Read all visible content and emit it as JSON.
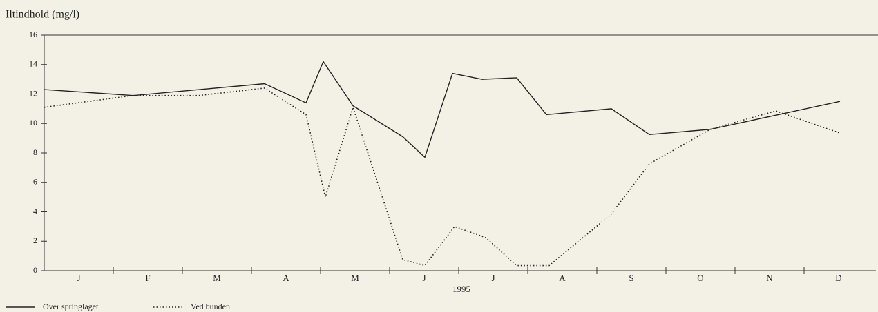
{
  "chart_data": {
    "type": "line",
    "title": "Iltindhold (mg/l)",
    "xlabel": "1995",
    "categories": [
      "J",
      "F",
      "M",
      "A",
      "M",
      "J",
      "J",
      "A",
      "S",
      "O",
      "N",
      "D"
    ],
    "xlim": [
      0,
      12
    ],
    "ylim": [
      0,
      16
    ],
    "yticks": [
      0,
      2,
      4,
      6,
      8,
      10,
      12,
      14,
      16
    ],
    "series": [
      {
        "name": "Over springlaget",
        "color": "#222222",
        "style": "solid",
        "x": [
          0,
          1.29,
          3.19,
          3.79,
          4.04,
          4.47,
          5.19,
          5.51,
          5.91,
          6.34,
          6.84,
          7.27,
          8.21,
          8.76,
          9.64,
          11.52
        ],
        "values": [
          12.3,
          11.9,
          12.7,
          11.4,
          14.2,
          11.2,
          9.1,
          7.7,
          13.4,
          13.0,
          13.1,
          10.6,
          11.0,
          9.25,
          9.6,
          11.5
        ]
      },
      {
        "name": "Ved bunden",
        "color": "#222222",
        "style": "dotted",
        "x": [
          0,
          1.29,
          2.24,
          3.19,
          3.79,
          4.07,
          4.47,
          5.19,
          5.51,
          5.94,
          6.39,
          6.84,
          7.31,
          8.2,
          8.76,
          9.64,
          10.59,
          11.52
        ],
        "values": [
          11.1,
          11.9,
          11.9,
          12.4,
          10.6,
          5.0,
          11.1,
          0.75,
          0.35,
          3.0,
          2.25,
          0.35,
          0.35,
          3.8,
          7.25,
          9.6,
          10.85,
          9.35
        ]
      }
    ]
  }
}
